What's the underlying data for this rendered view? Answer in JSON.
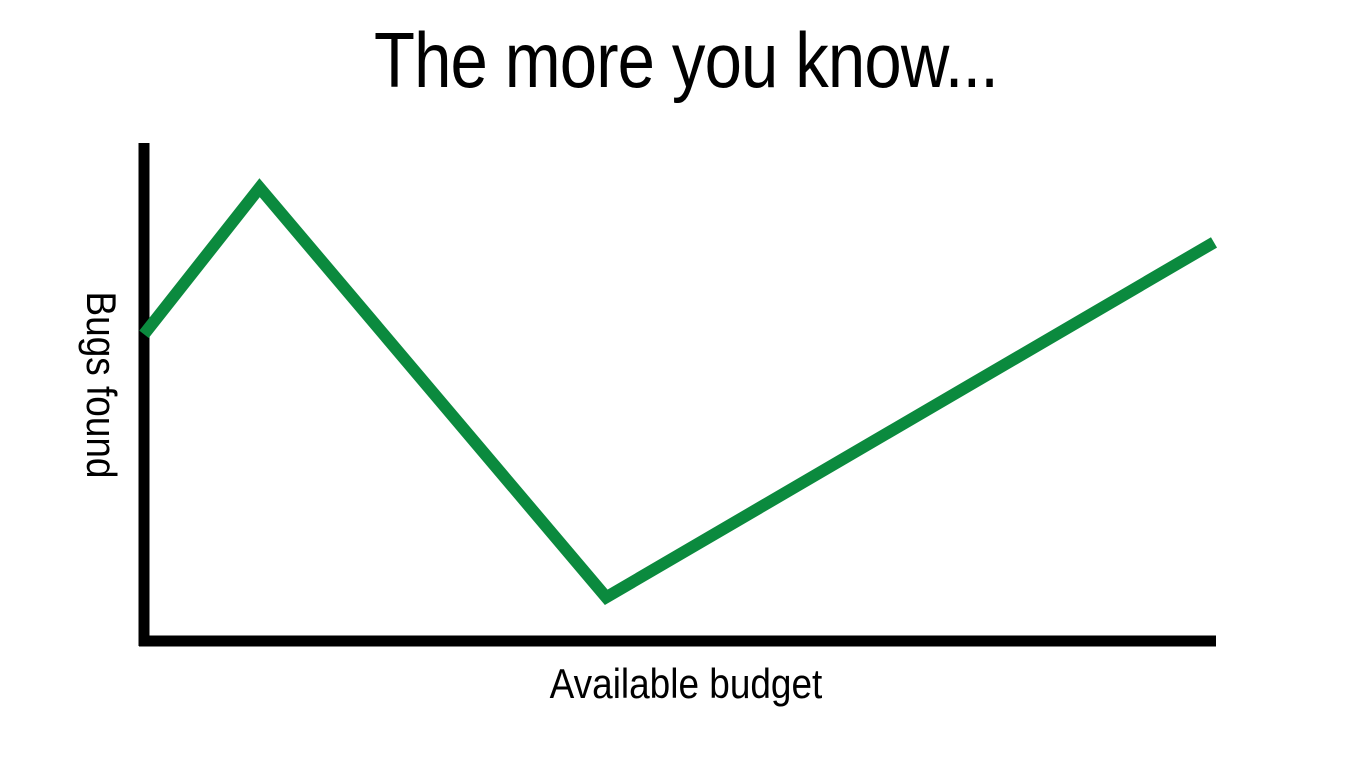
{
  "chart_data": {
    "type": "line",
    "title": "The more you know...",
    "xlabel": "Available budget",
    "ylabel": "Bugs found",
    "grid": false,
    "legend": "none",
    "x": [
      0,
      10.8,
      43.2,
      100
    ],
    "xlim": [
      0,
      100
    ],
    "ylim": [
      0,
      100
    ],
    "series": [
      {
        "values": [
          61.5,
          91,
          8.6,
          80
        ],
        "color": "#0b8a3e"
      }
    ]
  }
}
